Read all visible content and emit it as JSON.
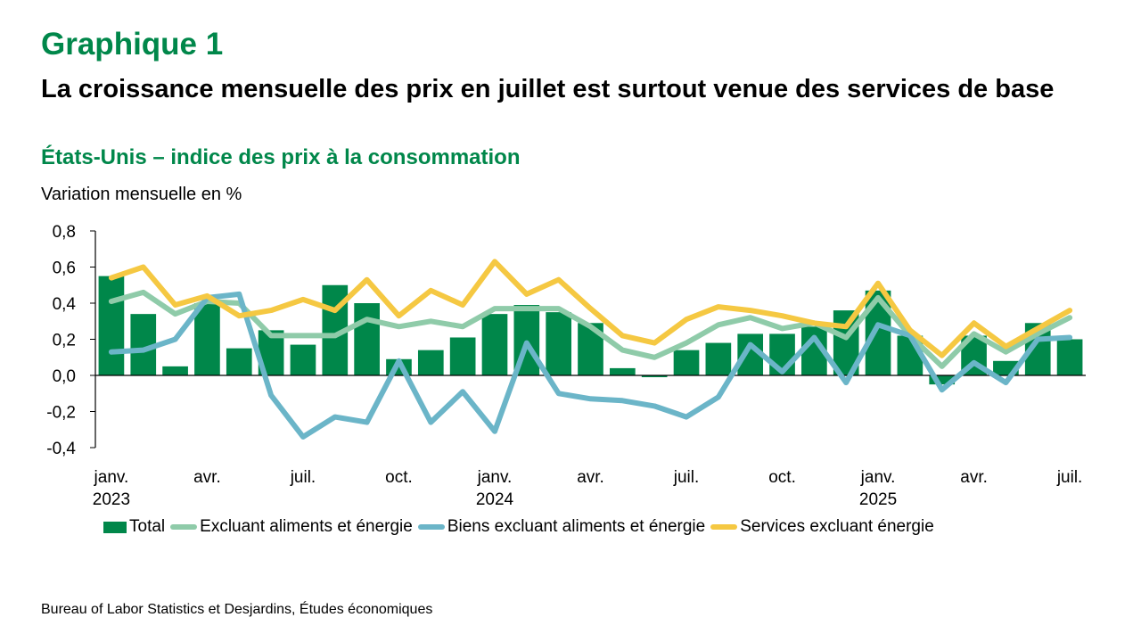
{
  "heading": "Graphique 1",
  "title": "La croissance mensuelle des prix en juillet est surtout venue des services de base",
  "subtitle": "États-Unis – indice des prix à la consommation",
  "source": "Bureau of Labor Statistics et Desjardins, Études économiques",
  "colors": {
    "brand_green": "#00874a",
    "total": "#00874a",
    "core": "#8fcba9",
    "goods": "#6bb5c8",
    "services": "#f5c842"
  },
  "chart_data": {
    "type": "bar+line",
    "title": "La croissance mensuelle des prix en juillet est surtout venue des services de base",
    "subtitle": "États-Unis – indice des prix à la consommation",
    "ylabel": "Variation mensuelle en %",
    "xlabel": "",
    "ylim": [
      -0.4,
      0.8
    ],
    "yticks": [
      0.8,
      0.6,
      0.4,
      0.2,
      0.0,
      -0.2,
      -0.4
    ],
    "ytick_labels": [
      "0,8",
      "0,6",
      "0,4",
      "0,2",
      "0,0",
      "-0,2",
      "-0,4"
    ],
    "grid": false,
    "legend_position": "bottom",
    "categories": [
      "2023-01",
      "2023-02",
      "2023-03",
      "2023-04",
      "2023-05",
      "2023-06",
      "2023-07",
      "2023-08",
      "2023-09",
      "2023-10",
      "2023-11",
      "2023-12",
      "2024-01",
      "2024-02",
      "2024-03",
      "2024-04",
      "2024-05",
      "2024-06",
      "2024-07",
      "2024-08",
      "2024-09",
      "2024-10",
      "2024-11",
      "2024-12",
      "2025-01",
      "2025-02",
      "2025-03",
      "2025-04",
      "2025-05",
      "2025-06",
      "2025-07"
    ],
    "xtick_labels": [
      {
        "index": 0,
        "line1": "janv.",
        "line2": "2023"
      },
      {
        "index": 3,
        "line1": "avr.",
        "line2": ""
      },
      {
        "index": 6,
        "line1": "juil.",
        "line2": ""
      },
      {
        "index": 9,
        "line1": "oct.",
        "line2": ""
      },
      {
        "index": 12,
        "line1": "janv.",
        "line2": "2024"
      },
      {
        "index": 15,
        "line1": "avr.",
        "line2": ""
      },
      {
        "index": 18,
        "line1": "juil.",
        "line2": ""
      },
      {
        "index": 21,
        "line1": "oct.",
        "line2": ""
      },
      {
        "index": 24,
        "line1": "janv.",
        "line2": "2025"
      },
      {
        "index": 27,
        "line1": "avr.",
        "line2": ""
      },
      {
        "index": 30,
        "line1": "juil.",
        "line2": ""
      }
    ],
    "series": [
      {
        "name": "Total",
        "kind": "bar",
        "color": "#00874a",
        "values": [
          0.55,
          0.34,
          0.05,
          0.4,
          0.15,
          0.25,
          0.17,
          0.5,
          0.4,
          0.09,
          0.14,
          0.21,
          0.34,
          0.39,
          0.35,
          0.29,
          0.04,
          -0.01,
          0.14,
          0.18,
          0.23,
          0.23,
          0.27,
          0.36,
          0.47,
          0.22,
          -0.05,
          0.22,
          0.08,
          0.29,
          0.2
        ]
      },
      {
        "name": "Excluant aliments et énergie",
        "kind": "line",
        "color": "#8fcba9",
        "values": [
          0.41,
          0.46,
          0.34,
          0.41,
          0.4,
          0.22,
          0.22,
          0.22,
          0.31,
          0.27,
          0.3,
          0.27,
          0.37,
          0.37,
          0.37,
          0.27,
          0.14,
          0.1,
          0.18,
          0.28,
          0.32,
          0.26,
          0.29,
          0.21,
          0.43,
          0.22,
          0.05,
          0.23,
          0.13,
          0.23,
          0.32
        ]
      },
      {
        "name": "Biens excluant aliments et énergie",
        "kind": "line",
        "color": "#6bb5c8",
        "values": [
          0.13,
          0.14,
          0.2,
          0.43,
          0.45,
          -0.11,
          -0.34,
          -0.23,
          -0.26,
          0.08,
          -0.26,
          -0.09,
          -0.31,
          0.18,
          -0.1,
          -0.13,
          -0.14,
          -0.17,
          -0.23,
          -0.12,
          0.17,
          0.02,
          0.21,
          -0.04,
          0.28,
          0.22,
          -0.08,
          0.07,
          -0.04,
          0.2,
          0.21
        ]
      },
      {
        "name": "Services excluant énergie",
        "kind": "line",
        "color": "#f5c842",
        "values": [
          0.54,
          0.6,
          0.39,
          0.44,
          0.33,
          0.36,
          0.42,
          0.36,
          0.53,
          0.33,
          0.47,
          0.39,
          0.63,
          0.45,
          0.53,
          0.37,
          0.22,
          0.18,
          0.31,
          0.38,
          0.36,
          0.33,
          0.29,
          0.27,
          0.51,
          0.25,
          0.11,
          0.29,
          0.16,
          0.26,
          0.36
        ]
      }
    ]
  }
}
